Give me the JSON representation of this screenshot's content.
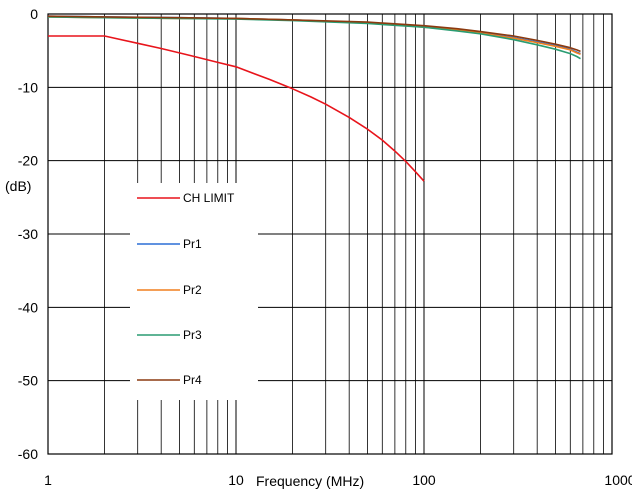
{
  "chart_data": {
    "type": "line",
    "xscale": "log",
    "xlim": [
      1,
      1000
    ],
    "ylim": [
      -60,
      0
    ],
    "xlabel": "Frequency (MHz)",
    "ylabel": "(dB)",
    "xticks": [
      "1",
      "10",
      "100",
      "1000"
    ],
    "yticks": [
      "0",
      "-10",
      "-20",
      "-30",
      "-40",
      "-50",
      "-60"
    ],
    "grid": true,
    "legend_position": "left-center",
    "series": [
      {
        "name": "CH LIMIT",
        "color": "#e8141b",
        "x": [
          1,
          2,
          3,
          4,
          5,
          6,
          8,
          10,
          15,
          20,
          25,
          30,
          40,
          50,
          60,
          70,
          80,
          90,
          100
        ],
        "y": [
          -3.0,
          -3.0,
          -4.0,
          -4.7,
          -5.3,
          -5.8,
          -6.6,
          -7.2,
          -8.9,
          -10.2,
          -11.3,
          -12.3,
          -14.1,
          -15.7,
          -17.2,
          -18.7,
          -20.1,
          -21.5,
          -22.8
        ]
      },
      {
        "name": "Pr1",
        "color": "#2b6fd6",
        "x": [
          1,
          2,
          5,
          10,
          20,
          50,
          100,
          150,
          200,
          300,
          400,
          500,
          600,
          650,
          680
        ],
        "y": [
          -0.3,
          -0.4,
          -0.5,
          -0.6,
          -0.8,
          -1.2,
          -1.7,
          -2.1,
          -2.5,
          -3.2,
          -3.8,
          -4.3,
          -4.8,
          -5.2,
          -5.4
        ]
      },
      {
        "name": "Pr2",
        "color": "#f07f1e",
        "x": [
          1,
          2,
          5,
          10,
          20,
          50,
          100,
          150,
          200,
          300,
          400,
          500,
          600,
          650,
          680
        ],
        "y": [
          -0.4,
          -0.5,
          -0.6,
          -0.6,
          -0.8,
          -1.2,
          -1.8,
          -2.2,
          -2.6,
          -3.3,
          -3.9,
          -4.4,
          -4.9,
          -5.3,
          -5.5
        ]
      },
      {
        "name": "Pr3",
        "color": "#2a9c72",
        "x": [
          1,
          2,
          5,
          10,
          20,
          50,
          100,
          150,
          200,
          300,
          400,
          500,
          600,
          650,
          680
        ],
        "y": [
          -0.4,
          -0.5,
          -0.6,
          -0.7,
          -0.9,
          -1.3,
          -1.8,
          -2.3,
          -2.7,
          -3.5,
          -4.2,
          -4.8,
          -5.4,
          -5.8,
          -6.1
        ]
      },
      {
        "name": "Pr4",
        "color": "#8b3a10",
        "x": [
          1,
          2,
          5,
          10,
          20,
          50,
          100,
          150,
          200,
          300,
          400,
          500,
          600,
          650,
          680
        ],
        "y": [
          -0.3,
          -0.4,
          -0.5,
          -0.6,
          -0.8,
          -1.1,
          -1.6,
          -2.0,
          -2.4,
          -3.0,
          -3.6,
          -4.1,
          -4.6,
          -4.9,
          -5.1
        ]
      }
    ]
  }
}
